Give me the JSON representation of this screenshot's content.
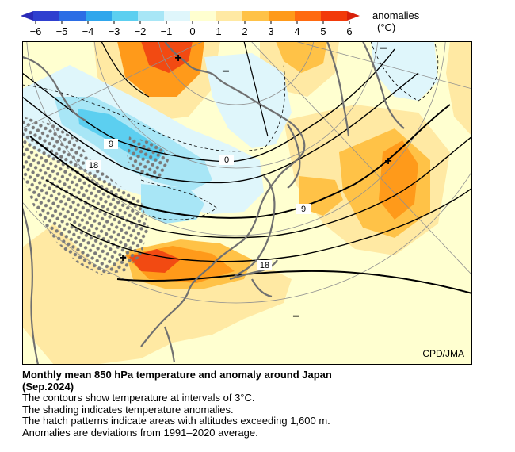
{
  "legend": {
    "title": "anomalies",
    "unit": "(°C)",
    "ticks": [
      "−6",
      "−5",
      "−4",
      "−3",
      "−2",
      "−1",
      "0",
      "1",
      "2",
      "3",
      "4",
      "5",
      "6"
    ],
    "colors": [
      "#2f3fcf",
      "#2b6de5",
      "#2fa6ec",
      "#5ccff0",
      "#a8e6f6",
      "#dff6fb",
      "#ffffd0",
      "#ffe9a3",
      "#ffc247",
      "#ff9a1a",
      "#ff6a10",
      "#f23a0a"
    ]
  },
  "map": {
    "credit": "CPD/JMA",
    "contour_labels": [
      "9",
      "18",
      "0",
      "9",
      "18"
    ],
    "markers": [
      "+",
      "+",
      "+",
      "−",
      "−",
      "−"
    ],
    "colors": {
      "background": "#ffffd0",
      "positive_light": "#ffe9a3",
      "positive_mid": "#ffc247",
      "positive_strong": "#ff9a1a",
      "positive_max": "#f24a12",
      "negative_light": "#dff6fb",
      "negative_mid": "#a8e6f6",
      "negative_strong": "#5ccff0",
      "coast": "#707070",
      "hatch": "#7a7a7a"
    }
  },
  "caption": {
    "title": "Monthly mean 850 hPa temperature and anomaly around Japan",
    "period": "(Sep.2024)",
    "lines": [
      "The contours show temperature at intervals of 3°C.",
      "The shading indicates temperature anomalies.",
      "The hatch patterns indicate areas with altitudes exceeding 1,600 m.",
      "Anomalies are deviations from 1991–2020 average."
    ]
  }
}
